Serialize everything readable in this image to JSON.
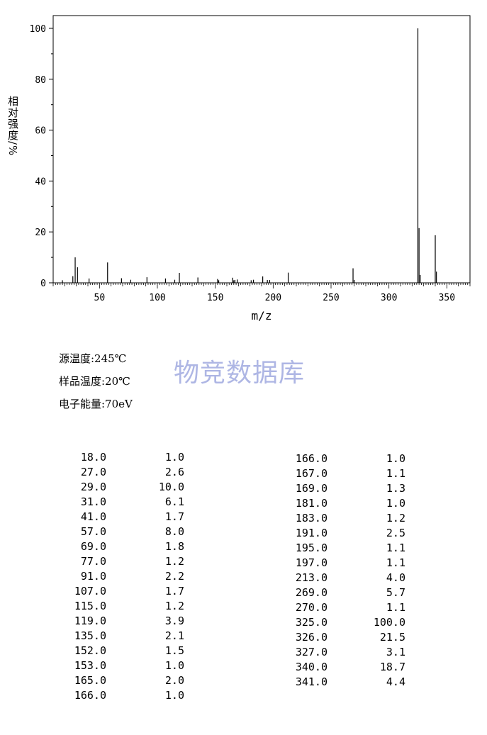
{
  "chart_data": {
    "type": "bar",
    "xlabel": "m/z",
    "ylabel": "相对强度/%",
    "xlim": [
      10,
      370
    ],
    "ylim": [
      0,
      100
    ],
    "x_ticks": [
      50,
      100,
      150,
      200,
      250,
      300,
      350
    ],
    "y_ticks": [
      0,
      20,
      40,
      60,
      80,
      100
    ],
    "grid": false,
    "peaks": [
      {
        "mz": 18,
        "intensity": 1.0
      },
      {
        "mz": 27,
        "intensity": 2.6
      },
      {
        "mz": 29,
        "intensity": 10.0
      },
      {
        "mz": 31,
        "intensity": 6.1
      },
      {
        "mz": 41,
        "intensity": 1.7
      },
      {
        "mz": 57,
        "intensity": 8.0
      },
      {
        "mz": 69,
        "intensity": 1.8
      },
      {
        "mz": 77,
        "intensity": 1.2
      },
      {
        "mz": 91,
        "intensity": 2.2
      },
      {
        "mz": 107,
        "intensity": 1.7
      },
      {
        "mz": 115,
        "intensity": 1.2
      },
      {
        "mz": 119,
        "intensity": 3.9
      },
      {
        "mz": 135,
        "intensity": 2.1
      },
      {
        "mz": 152,
        "intensity": 1.5
      },
      {
        "mz": 153,
        "intensity": 1.0
      },
      {
        "mz": 165,
        "intensity": 2.0
      },
      {
        "mz": 166,
        "intensity": 1.0
      },
      {
        "mz": 167,
        "intensity": 1.1
      },
      {
        "mz": 169,
        "intensity": 1.3
      },
      {
        "mz": 181,
        "intensity": 1.0
      },
      {
        "mz": 183,
        "intensity": 1.2
      },
      {
        "mz": 191,
        "intensity": 2.5
      },
      {
        "mz": 195,
        "intensity": 1.1
      },
      {
        "mz": 197,
        "intensity": 1.1
      },
      {
        "mz": 213,
        "intensity": 4.0
      },
      {
        "mz": 269,
        "intensity": 5.7
      },
      {
        "mz": 270,
        "intensity": 1.1
      },
      {
        "mz": 325,
        "intensity": 100.0
      },
      {
        "mz": 326,
        "intensity": 21.5
      },
      {
        "mz": 327,
        "intensity": 3.1
      },
      {
        "mz": 340,
        "intensity": 18.7
      },
      {
        "mz": 341,
        "intensity": 4.4
      }
    ]
  },
  "info": {
    "source_temp": "源温度:245℃",
    "sample_temp": "样品温度:20℃",
    "electron_energy": "电子能量:70eV"
  },
  "watermark": "物竞数据库",
  "table_left": [
    [
      "18.0",
      "1.0"
    ],
    [
      "27.0",
      "2.6"
    ],
    [
      "29.0",
      "10.0"
    ],
    [
      "31.0",
      "6.1"
    ],
    [
      "41.0",
      "1.7"
    ],
    [
      "57.0",
      "8.0"
    ],
    [
      "69.0",
      "1.8"
    ],
    [
      "77.0",
      "1.2"
    ],
    [
      "91.0",
      "2.2"
    ],
    [
      "107.0",
      "1.7"
    ],
    [
      "115.0",
      "1.2"
    ],
    [
      "119.0",
      "3.9"
    ],
    [
      "135.0",
      "2.1"
    ],
    [
      "152.0",
      "1.5"
    ],
    [
      "153.0",
      "1.0"
    ],
    [
      "165.0",
      "2.0"
    ],
    [
      "166.0",
      "1.0"
    ]
  ],
  "table_right": [
    [
      "166.0",
      "1.0"
    ],
    [
      "167.0",
      "1.1"
    ],
    [
      "169.0",
      "1.3"
    ],
    [
      "181.0",
      "1.0"
    ],
    [
      "183.0",
      "1.2"
    ],
    [
      "191.0",
      "2.5"
    ],
    [
      "195.0",
      "1.1"
    ],
    [
      "197.0",
      "1.1"
    ],
    [
      "213.0",
      "4.0"
    ],
    [
      "269.0",
      "5.7"
    ],
    [
      "270.0",
      "1.1"
    ],
    [
      "325.0",
      "100.0"
    ],
    [
      "326.0",
      "21.5"
    ],
    [
      "327.0",
      "3.1"
    ],
    [
      "340.0",
      "18.7"
    ],
    [
      "341.0",
      "4.4"
    ]
  ]
}
